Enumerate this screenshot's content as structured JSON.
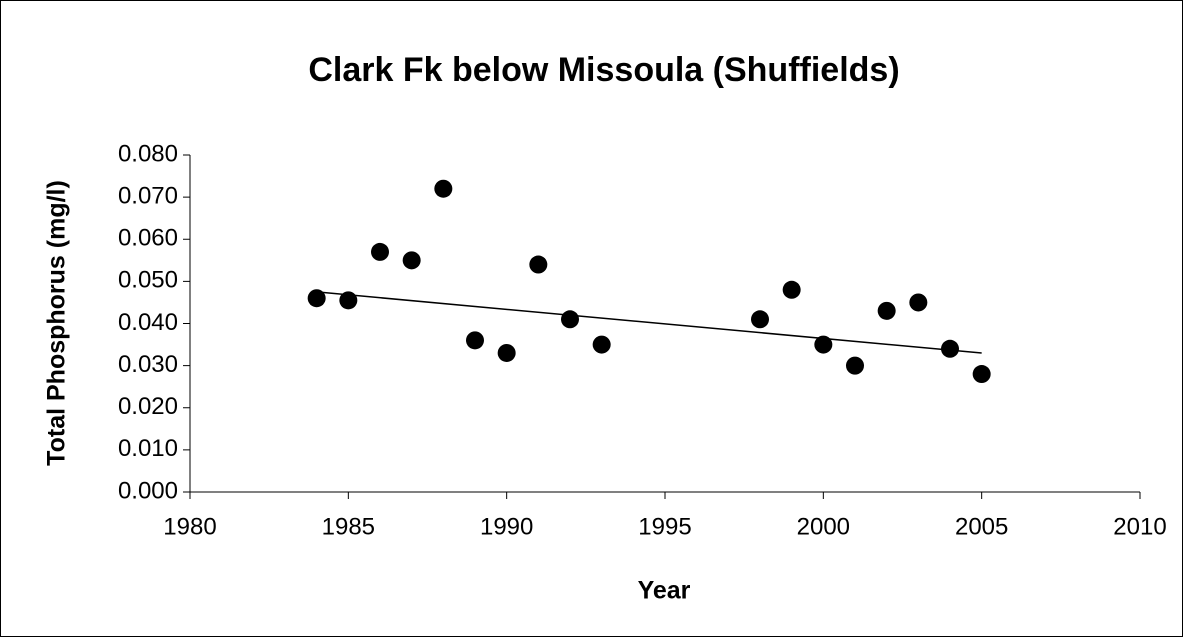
{
  "chart_data": {
    "type": "scatter",
    "title": "Clark Fk below Missoula (Shuffields)",
    "x_label": "Year",
    "y_label": "Total Phosphorus (mg/l)",
    "x": [
      1984,
      1985,
      1986,
      1987,
      1988,
      1989,
      1990,
      1991,
      1992,
      1993,
      1998,
      1999,
      2000,
      2001,
      2002,
      2003,
      2004,
      2005
    ],
    "values": [
      0.046,
      0.0455,
      0.057,
      0.055,
      0.072,
      0.036,
      0.033,
      0.054,
      0.041,
      0.035,
      0.041,
      0.048,
      0.035,
      0.03,
      0.043,
      0.045,
      0.034,
      0.028
    ],
    "color": "#000000",
    "trendline": {
      "x": [
        1984,
        2005
      ],
      "values": [
        0.0475,
        0.033
      ]
    },
    "xlim": [
      1980,
      2010
    ],
    "xticks": [
      1980,
      1985,
      1990,
      1995,
      2000,
      2005,
      2010
    ],
    "ylim": [
      0,
      0.08
    ],
    "yticks": [
      {
        "value": 0,
        "label": "0.000"
      },
      {
        "value": 0.01,
        "label": "0.010"
      },
      {
        "value": 0.02,
        "label": "0.020"
      },
      {
        "value": 0.03,
        "label": "0.030"
      },
      {
        "value": 0.04,
        "label": "0.040"
      },
      {
        "value": 0.05,
        "label": "0.050"
      },
      {
        "value": 0.06,
        "label": "0.060"
      },
      {
        "value": 0.07,
        "label": "0.070"
      },
      {
        "value": 0.08,
        "label": "0.080"
      }
    ],
    "grid": false
  }
}
